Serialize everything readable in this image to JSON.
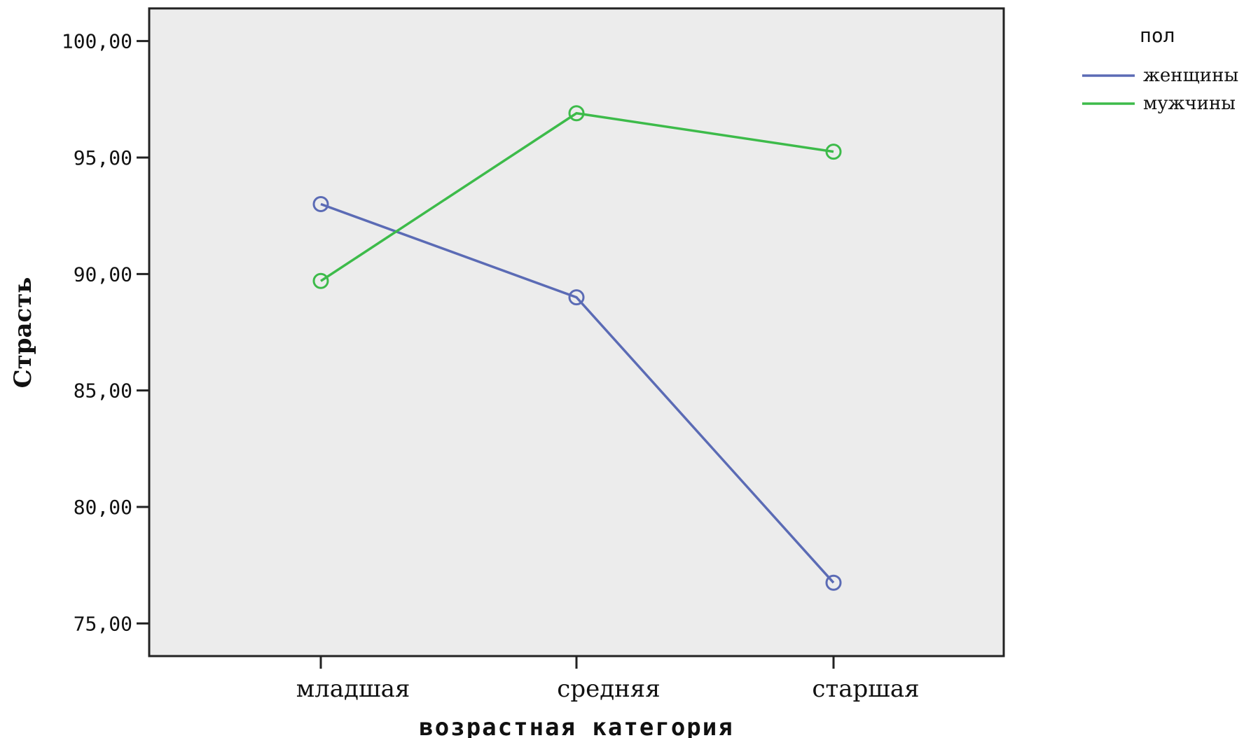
{
  "chart_data": {
    "type": "line",
    "categories": [
      "младшая",
      "средняя",
      "старшая"
    ],
    "series": [
      {
        "name": "женщины",
        "values": [
          93.0,
          89.0,
          76.75
        ],
        "color": "#5b6bb5"
      },
      {
        "name": "мужчины",
        "values": [
          89.7,
          96.9,
          95.25
        ],
        "color": "#3dbb4a"
      }
    ],
    "xlabel": "возрастная категория",
    "ylabel": "Страсть",
    "ylim": [
      73.6,
      101.4
    ],
    "yticks": [
      "75,00",
      "80,00",
      "85,00",
      "90,00",
      "95,00",
      "100,00"
    ],
    "ytick_values": [
      75,
      80,
      85,
      90,
      95,
      100
    ],
    "legend": {
      "title": "пол",
      "position": "right-top"
    },
    "plot_background": "#ececec",
    "grid": false
  }
}
